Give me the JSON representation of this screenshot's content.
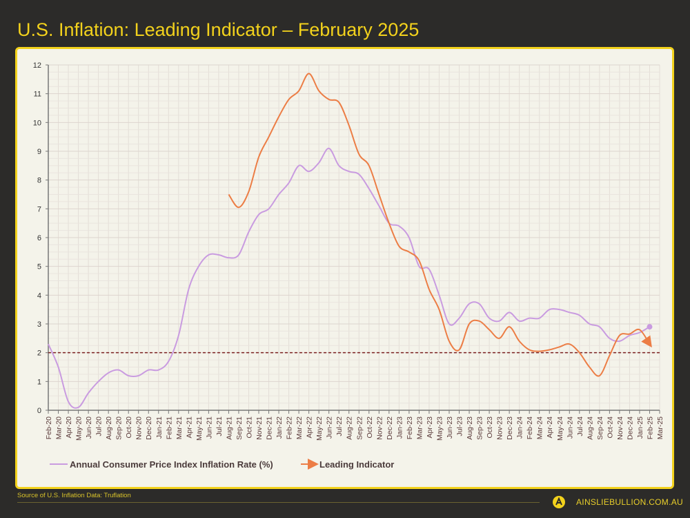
{
  "title": "U.S. Inflation: Leading Indicator – February 2025",
  "footer": {
    "source": "Source of U.S. Inflation Data: Truflation",
    "site": "AINSLIEBULLION.COM.AU",
    "logo_letter": "A"
  },
  "colors": {
    "background": "#2c2b29",
    "accent": "#f3d21c",
    "cpi": "#c99be0",
    "leading": "#ec7d45",
    "reference": "#7a1f1f"
  },
  "chart_data": {
    "type": "line",
    "title": "U.S. Inflation: Leading Indicator – February 2025",
    "ylim": [
      0,
      12
    ],
    "yticks": [
      0,
      1,
      2,
      3,
      4,
      5,
      6,
      7,
      8,
      9,
      10,
      11,
      12
    ],
    "grid": true,
    "legend": "bottom",
    "reference_line": {
      "y": 2,
      "style": "dashed"
    },
    "categories": [
      "Feb-20",
      "Mar-20",
      "Apr-20",
      "May-20",
      "Jun-20",
      "Jul-20",
      "Aug-20",
      "Sep-20",
      "Oct-20",
      "Nov-20",
      "Dec-20",
      "Jan-21",
      "Feb-21",
      "Mar-21",
      "Apr-21",
      "May-21",
      "Jun-21",
      "Jul-21",
      "Aug-21",
      "Sep-21",
      "Oct-21",
      "Nov-21",
      "Dec-21",
      "Jan-22",
      "Feb-22",
      "Mar-22",
      "Apr-22",
      "May-22",
      "Jun-22",
      "Jul-22",
      "Aug-22",
      "Sep-22",
      "Oct-22",
      "Nov-22",
      "Dec-22",
      "Jan-23",
      "Feb-23",
      "Mar-23",
      "Apr-23",
      "May-23",
      "Jun-23",
      "Jul-23",
      "Aug-23",
      "Sep-23",
      "Oct-23",
      "Nov-23",
      "Dec-23",
      "Jan-24",
      "Feb-24",
      "Mar-24",
      "Apr-24",
      "May-24",
      "Jun-24",
      "Jul-24",
      "Aug-24",
      "Sep-24",
      "Oct-24",
      "Nov-24",
      "Dec-24",
      "Jan-25",
      "Feb-25",
      "Mar-25"
    ],
    "series": [
      {
        "name": "Annual Consumer Price Index Inflation Rate (%)",
        "color": "#c99be0",
        "values": [
          2.3,
          1.5,
          0.3,
          0.1,
          0.6,
          1.0,
          1.3,
          1.4,
          1.2,
          1.2,
          1.4,
          1.4,
          1.7,
          2.6,
          4.2,
          5.0,
          5.4,
          5.4,
          5.3,
          5.4,
          6.2,
          6.8,
          7.0,
          7.5,
          7.9,
          8.5,
          8.3,
          8.6,
          9.1,
          8.5,
          8.3,
          8.2,
          7.7,
          7.1,
          6.5,
          6.4,
          6.0,
          5.0,
          4.9,
          4.0,
          3.0,
          3.2,
          3.7,
          3.7,
          3.2,
          3.1,
          3.4,
          3.1,
          3.2,
          3.2,
          3.5,
          3.5,
          3.4,
          3.3,
          3.0,
          2.9,
          2.5,
          2.4,
          2.6,
          2.7,
          2.9,
          null
        ]
      },
      {
        "name": "Leading Indicator",
        "color": "#ec7d45",
        "values": [
          null,
          null,
          null,
          null,
          null,
          null,
          null,
          null,
          null,
          null,
          null,
          null,
          null,
          null,
          null,
          null,
          null,
          null,
          7.5,
          7.05,
          7.6,
          8.8,
          9.5,
          10.2,
          10.8,
          11.1,
          11.7,
          11.1,
          10.8,
          10.7,
          9.9,
          8.9,
          8.5,
          7.5,
          6.5,
          5.7,
          5.5,
          5.2,
          4.2,
          3.5,
          2.4,
          2.1,
          3.0,
          3.1,
          2.8,
          2.5,
          2.9,
          2.4,
          2.1,
          2.05,
          2.1,
          2.2,
          2.3,
          2.0,
          1.5,
          1.2,
          1.9,
          2.6,
          2.65,
          2.8,
          2.3,
          null
        ]
      }
    ]
  }
}
